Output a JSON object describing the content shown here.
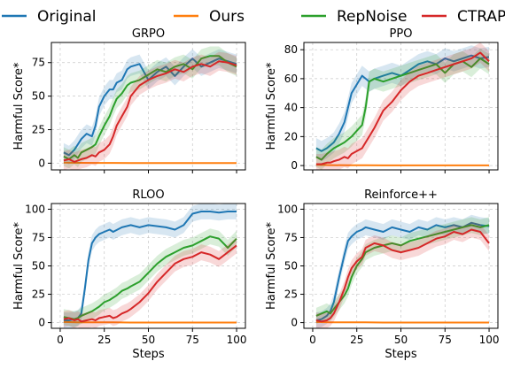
{
  "chart_data": {
    "type": "line",
    "legend": {
      "placement": "top",
      "entries": [
        {
          "name": "Original",
          "color": "#1f77b4"
        },
        {
          "name": "Ours",
          "color": "#ff7f0e"
        },
        {
          "name": "RepNoise",
          "color": "#2ca02c"
        },
        {
          "name": "CTRAP",
          "color": "#d62728"
        }
      ]
    },
    "grid": true,
    "shared_x": {
      "label": "Steps",
      "range": [
        0,
        100
      ],
      "ticks": [
        0,
        25,
        50,
        75,
        100
      ]
    },
    "subplots": [
      {
        "title": "GRPO",
        "ylabel": "Harmful Score*",
        "ylim": [
          -5,
          90
        ],
        "yticks": [
          0,
          25,
          50,
          75
        ],
        "show_x_ticklabels": false,
        "show_xlabel": false,
        "series": [
          {
            "name": "Original",
            "color": "#1f77b4",
            "x": [
              2,
              5,
              8,
              10,
              12,
              15,
              18,
              20,
              22,
              25,
              28,
              30,
              32,
              35,
              38,
              40,
              45,
              50,
              55,
              60,
              65,
              70,
              75,
              80,
              85,
              90,
              95,
              100
            ],
            "y": [
              8,
              6,
              10,
              14,
              18,
              22,
              20,
              28,
              42,
              50,
              55,
              55,
              60,
              62,
              70,
              72,
              74,
              62,
              68,
              72,
              65,
              72,
              78,
              72,
              75,
              78,
              76,
              74
            ]
          },
          {
            "name": "Ours",
            "color": "#ff7f0e",
            "x": [
              2,
              10,
              20,
              30,
              40,
              50,
              60,
              70,
              80,
              90,
              100
            ],
            "y": [
              0.5,
              0.3,
              0.2,
              0.2,
              0.1,
              0.1,
              0.1,
              0.1,
              0.1,
              0.1,
              0.1
            ]
          },
          {
            "name": "RepNoise",
            "color": "#2ca02c",
            "x": [
              2,
              5,
              8,
              10,
              12,
              15,
              18,
              20,
              22,
              25,
              28,
              30,
              32,
              35,
              38,
              40,
              45,
              50,
              55,
              60,
              65,
              70,
              75,
              80,
              85,
              90,
              95,
              100
            ],
            "y": [
              5,
              3,
              6,
              4,
              8,
              10,
              12,
              14,
              20,
              28,
              35,
              42,
              48,
              52,
              58,
              60,
              62,
              66,
              70,
              68,
              72,
              74,
              70,
              78,
              80,
              80,
              75,
              72
            ]
          },
          {
            "name": "CTRAP",
            "color": "#d62728",
            "x": [
              2,
              5,
              8,
              10,
              12,
              15,
              18,
              20,
              22,
              25,
              28,
              30,
              32,
              35,
              38,
              40,
              45,
              50,
              55,
              60,
              65,
              70,
              75,
              80,
              85,
              90,
              95,
              100
            ],
            "y": [
              2,
              3,
              1,
              2,
              3,
              4,
              6,
              5,
              8,
              10,
              14,
              20,
              28,
              35,
              42,
              50,
              58,
              62,
              65,
              67,
              70,
              68,
              72,
              74,
              72,
              76,
              75,
              73
            ]
          }
        ]
      },
      {
        "title": "PPO",
        "ylabel": "Harmful Score*",
        "ylim": [
          -3,
          85
        ],
        "yticks": [
          0,
          20,
          40,
          60,
          80
        ],
        "show_x_ticklabels": false,
        "show_xlabel": false,
        "series": [
          {
            "name": "Original",
            "color": "#1f77b4",
            "x": [
              2,
              5,
              8,
              10,
              12,
              15,
              18,
              20,
              22,
              25,
              28,
              30,
              32,
              35,
              40,
              45,
              50,
              55,
              60,
              65,
              70,
              75,
              80,
              85,
              90,
              95,
              100
            ],
            "y": [
              12,
              10,
              12,
              14,
              16,
              22,
              30,
              40,
              50,
              56,
              62,
              60,
              58,
              60,
              62,
              64,
              62,
              66,
              70,
              72,
              70,
              74,
              72,
              74,
              76,
              74,
              75
            ]
          },
          {
            "name": "Ours",
            "color": "#ff7f0e",
            "x": [
              2,
              10,
              20,
              30,
              40,
              50,
              60,
              70,
              80,
              90,
              100
            ],
            "y": [
              0.5,
              0.3,
              0.2,
              0.2,
              0.1,
              0.1,
              0.1,
              0.1,
              0.1,
              0.1,
              0.1
            ]
          },
          {
            "name": "RepNoise",
            "color": "#2ca02c",
            "x": [
              2,
              5,
              8,
              10,
              12,
              15,
              18,
              20,
              22,
              25,
              28,
              30,
              32,
              35,
              40,
              45,
              50,
              55,
              60,
              65,
              70,
              75,
              80,
              85,
              90,
              95,
              100
            ],
            "y": [
              6,
              4,
              8,
              10,
              12,
              14,
              16,
              18,
              20,
              24,
              28,
              40,
              58,
              60,
              58,
              60,
              62,
              64,
              66,
              68,
              70,
              64,
              70,
              72,
              68,
              74,
              70
            ]
          },
          {
            "name": "CTRAP",
            "color": "#d62728",
            "x": [
              2,
              5,
              8,
              10,
              12,
              15,
              18,
              20,
              22,
              25,
              28,
              30,
              32,
              35,
              40,
              45,
              50,
              55,
              60,
              65,
              70,
              75,
              80,
              85,
              90,
              95,
              100
            ],
            "y": [
              1,
              1,
              2,
              2,
              3,
              4,
              6,
              5,
              8,
              10,
              12,
              16,
              20,
              26,
              38,
              44,
              52,
              58,
              62,
              64,
              66,
              68,
              70,
              72,
              74,
              78,
              72
            ]
          }
        ]
      },
      {
        "title": "RLOO",
        "ylabel": "Harmful Score*",
        "ylim": [
          -5,
          105
        ],
        "yticks": [
          0,
          25,
          50,
          75,
          100
        ],
        "show_x_ticklabels": true,
        "show_xlabel": true,
        "series": [
          {
            "name": "Original",
            "color": "#1f77b4",
            "x": [
              2,
              5,
              8,
              10,
              12,
              14,
              16,
              18,
              20,
              22,
              25,
              28,
              30,
              35,
              40,
              45,
              50,
              55,
              60,
              65,
              70,
              75,
              80,
              85,
              90,
              95,
              100
            ],
            "y": [
              2,
              2,
              3,
              4,
              8,
              30,
              55,
              70,
              75,
              78,
              80,
              82,
              80,
              84,
              86,
              84,
              86,
              85,
              84,
              82,
              86,
              96,
              98,
              98,
              97,
              98,
              98
            ]
          },
          {
            "name": "Ours",
            "color": "#ff7f0e",
            "x": [
              2,
              10,
              20,
              30,
              40,
              50,
              60,
              70,
              80,
              90,
              100
            ],
            "y": [
              0.5,
              0.3,
              0.2,
              0.2,
              0.1,
              0.1,
              0.1,
              0.1,
              0.1,
              0.1,
              0.1
            ]
          },
          {
            "name": "RepNoise",
            "color": "#2ca02c",
            "x": [
              2,
              5,
              8,
              10,
              12,
              15,
              18,
              20,
              22,
              25,
              28,
              30,
              32,
              35,
              38,
              40,
              45,
              50,
              55,
              60,
              65,
              70,
              75,
              80,
              85,
              90,
              95,
              100
            ],
            "y": [
              5,
              4,
              3,
              4,
              6,
              8,
              10,
              12,
              14,
              18,
              20,
              22,
              24,
              28,
              30,
              32,
              36,
              44,
              52,
              58,
              62,
              66,
              68,
              72,
              76,
              74,
              66,
              74
            ]
          },
          {
            "name": "CTRAP",
            "color": "#d62728",
            "x": [
              2,
              5,
              8,
              10,
              12,
              15,
              18,
              20,
              22,
              25,
              28,
              30,
              32,
              35,
              38,
              40,
              45,
              50,
              55,
              60,
              65,
              70,
              75,
              80,
              85,
              90,
              95,
              100
            ],
            "y": [
              3,
              4,
              2,
              3,
              1,
              2,
              3,
              2,
              4,
              5,
              6,
              4,
              5,
              8,
              10,
              12,
              18,
              26,
              36,
              44,
              52,
              56,
              58,
              62,
              60,
              56,
              62,
              68
            ]
          }
        ]
      },
      {
        "title": "Reinforce++",
        "ylabel": "Harmful Score*",
        "ylim": [
          -5,
          105
        ],
        "yticks": [
          0,
          25,
          50,
          75,
          100
        ],
        "show_x_ticklabels": true,
        "show_xlabel": true,
        "series": [
          {
            "name": "Original",
            "color": "#1f77b4",
            "x": [
              2,
              5,
              8,
              10,
              12,
              15,
              18,
              20,
              22,
              25,
              28,
              30,
              35,
              40,
              45,
              50,
              55,
              60,
              65,
              70,
              75,
              80,
              85,
              90,
              95,
              100
            ],
            "y": [
              2,
              3,
              6,
              10,
              18,
              40,
              60,
              72,
              76,
              80,
              82,
              84,
              82,
              80,
              84,
              82,
              80,
              84,
              82,
              86,
              84,
              86,
              84,
              88,
              86,
              85
            ]
          },
          {
            "name": "Ours",
            "color": "#ff7f0e",
            "x": [
              2,
              10,
              20,
              30,
              40,
              50,
              60,
              70,
              80,
              90,
              100
            ],
            "y": [
              0.5,
              0.3,
              0.2,
              0.2,
              0.1,
              0.1,
              0.1,
              0.1,
              0.1,
              0.1,
              0.1
            ]
          },
          {
            "name": "RepNoise",
            "color": "#2ca02c",
            "x": [
              2,
              5,
              8,
              10,
              12,
              15,
              18,
              20,
              22,
              25,
              28,
              30,
              35,
              40,
              45,
              50,
              55,
              60,
              65,
              70,
              75,
              80,
              85,
              90,
              95,
              100
            ],
            "y": [
              6,
              8,
              10,
              8,
              12,
              18,
              24,
              30,
              40,
              50,
              56,
              62,
              66,
              68,
              70,
              68,
              72,
              74,
              76,
              78,
              80,
              82,
              84,
              86,
              84,
              86
            ]
          },
          {
            "name": "CTRAP",
            "color": "#d62728",
            "x": [
              2,
              5,
              8,
              10,
              12,
              15,
              18,
              20,
              22,
              25,
              28,
              30,
              35,
              40,
              45,
              50,
              55,
              60,
              65,
              70,
              75,
              80,
              85,
              90,
              95,
              100
            ],
            "y": [
              2,
              1,
              2,
              4,
              8,
              18,
              30,
              40,
              48,
              54,
              58,
              66,
              70,
              68,
              64,
              62,
              64,
              66,
              70,
              74,
              76,
              80,
              78,
              82,
              80,
              70
            ]
          }
        ]
      }
    ]
  }
}
